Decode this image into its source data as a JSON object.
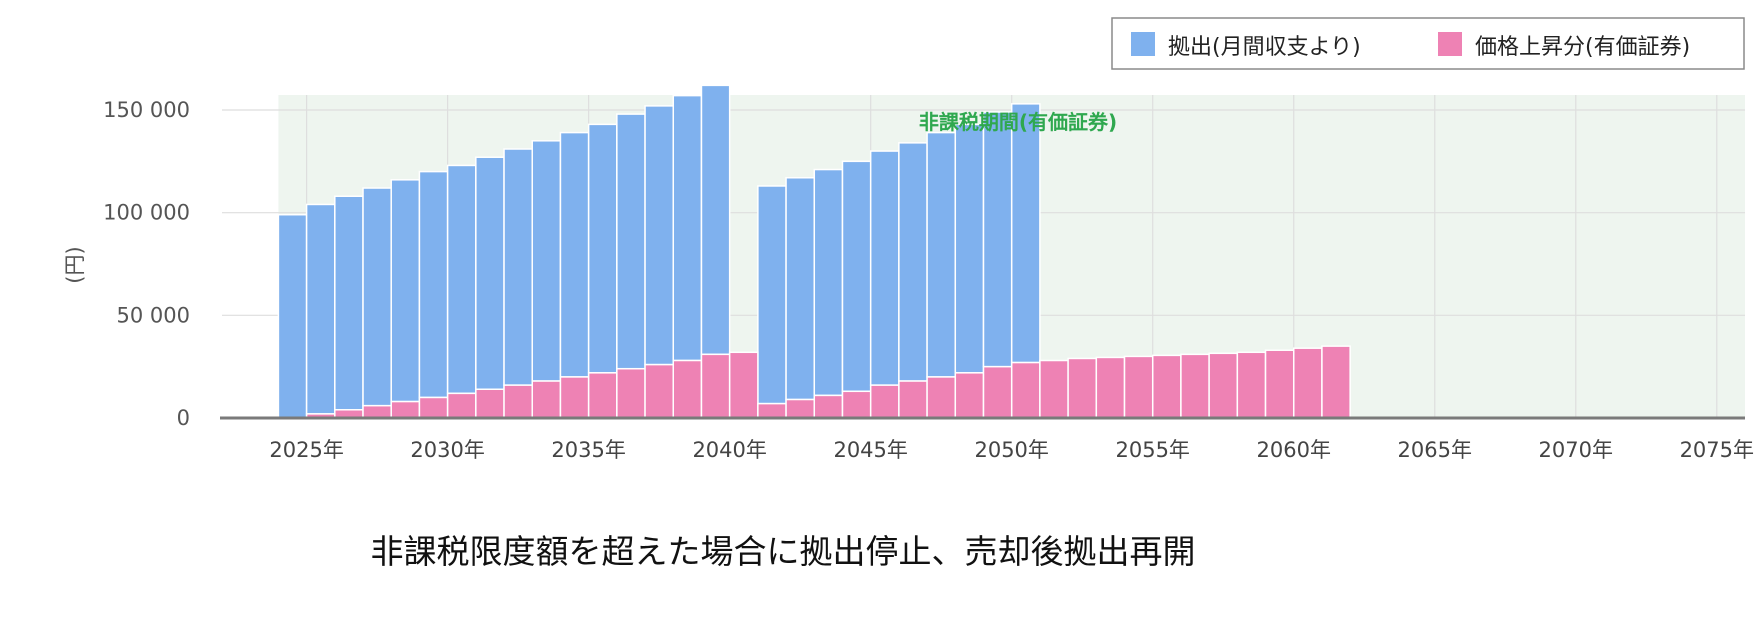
{
  "chart_data": {
    "type": "bar",
    "stacked": true,
    "ylabel": "(円)",
    "ylim": [
      0,
      150000
    ],
    "y_ticks": [
      0,
      50000,
      100000,
      150000
    ],
    "y_tick_labels": [
      "0",
      "50 000",
      "100 000",
      "150 000"
    ],
    "x_range": [
      2022,
      2076
    ],
    "x_ticks": [
      2025,
      2030,
      2035,
      2040,
      2045,
      2050,
      2055,
      2060,
      2065,
      2070,
      2075
    ],
    "x_tick_labels": [
      "2025年",
      "2030年",
      "2035年",
      "2040年",
      "2045年",
      "2050年",
      "2055年",
      "2060年",
      "2065年",
      "2070年",
      "2075年"
    ],
    "grid": true,
    "legend_position": "top-right",
    "highlight_band": {
      "label": "非課税期間(有価証券)",
      "start": 2024,
      "end": 2076,
      "color": "#eef5ef"
    },
    "annotation": "非課税限度額を超えた場合に拠出停止、売却後拠出再開",
    "series": [
      {
        "name": "拠出(月間収支より)",
        "color": "#7fb1ee",
        "points": [
          {
            "year": 2024,
            "value": 99000
          },
          {
            "year": 2025,
            "value": 102000
          },
          {
            "year": 2026,
            "value": 104000
          },
          {
            "year": 2027,
            "value": 106000
          },
          {
            "year": 2028,
            "value": 108000
          },
          {
            "year": 2029,
            "value": 110000
          },
          {
            "year": 2030,
            "value": 111000
          },
          {
            "year": 2031,
            "value": 113000
          },
          {
            "year": 2032,
            "value": 115000
          },
          {
            "year": 2033,
            "value": 117000
          },
          {
            "year": 2034,
            "value": 119000
          },
          {
            "year": 2035,
            "value": 121000
          },
          {
            "year": 2036,
            "value": 124000
          },
          {
            "year": 2037,
            "value": 126000
          },
          {
            "year": 2038,
            "value": 129000
          },
          {
            "year": 2039,
            "value": 131000
          },
          {
            "year": 2040,
            "value": 0
          },
          {
            "year": 2041,
            "value": 106000
          },
          {
            "year": 2042,
            "value": 108000
          },
          {
            "year": 2043,
            "value": 110000
          },
          {
            "year": 2044,
            "value": 112000
          },
          {
            "year": 2045,
            "value": 114000
          },
          {
            "year": 2046,
            "value": 116000
          },
          {
            "year": 2047,
            "value": 119000
          },
          {
            "year": 2048,
            "value": 121000
          },
          {
            "year": 2049,
            "value": 124000
          },
          {
            "year": 2050,
            "value": 126000
          }
        ]
      },
      {
        "name": "価格上昇分(有価証券)",
        "color": "#ee82b4",
        "points": [
          {
            "year": 2024,
            "value": 0
          },
          {
            "year": 2025,
            "value": 2000
          },
          {
            "year": 2026,
            "value": 4000
          },
          {
            "year": 2027,
            "value": 6000
          },
          {
            "year": 2028,
            "value": 8000
          },
          {
            "year": 2029,
            "value": 10000
          },
          {
            "year": 2030,
            "value": 12000
          },
          {
            "year": 2031,
            "value": 14000
          },
          {
            "year": 2032,
            "value": 16000
          },
          {
            "year": 2033,
            "value": 18000
          },
          {
            "year": 2034,
            "value": 20000
          },
          {
            "year": 2035,
            "value": 22000
          },
          {
            "year": 2036,
            "value": 24000
          },
          {
            "year": 2037,
            "value": 26000
          },
          {
            "year": 2038,
            "value": 28000
          },
          {
            "year": 2039,
            "value": 31000
          },
          {
            "year": 2040,
            "value": 32000
          },
          {
            "year": 2041,
            "value": 7000
          },
          {
            "year": 2042,
            "value": 9000
          },
          {
            "year": 2043,
            "value": 11000
          },
          {
            "year": 2044,
            "value": 13000
          },
          {
            "year": 2045,
            "value": 16000
          },
          {
            "year": 2046,
            "value": 18000
          },
          {
            "year": 2047,
            "value": 20000
          },
          {
            "year": 2048,
            "value": 22000
          },
          {
            "year": 2049,
            "value": 25000
          },
          {
            "year": 2050,
            "value": 27000
          },
          {
            "year": 2051,
            "value": 28000
          },
          {
            "year": 2052,
            "value": 29000
          },
          {
            "year": 2053,
            "value": 29500
          },
          {
            "year": 2054,
            "value": 30000
          },
          {
            "year": 2055,
            "value": 30500
          },
          {
            "year": 2056,
            "value": 31000
          },
          {
            "year": 2057,
            "value": 31500
          },
          {
            "year": 2058,
            "value": 32000
          },
          {
            "year": 2059,
            "value": 33000
          },
          {
            "year": 2060,
            "value": 34000
          },
          {
            "year": 2061,
            "value": 35000
          }
        ]
      }
    ]
  }
}
